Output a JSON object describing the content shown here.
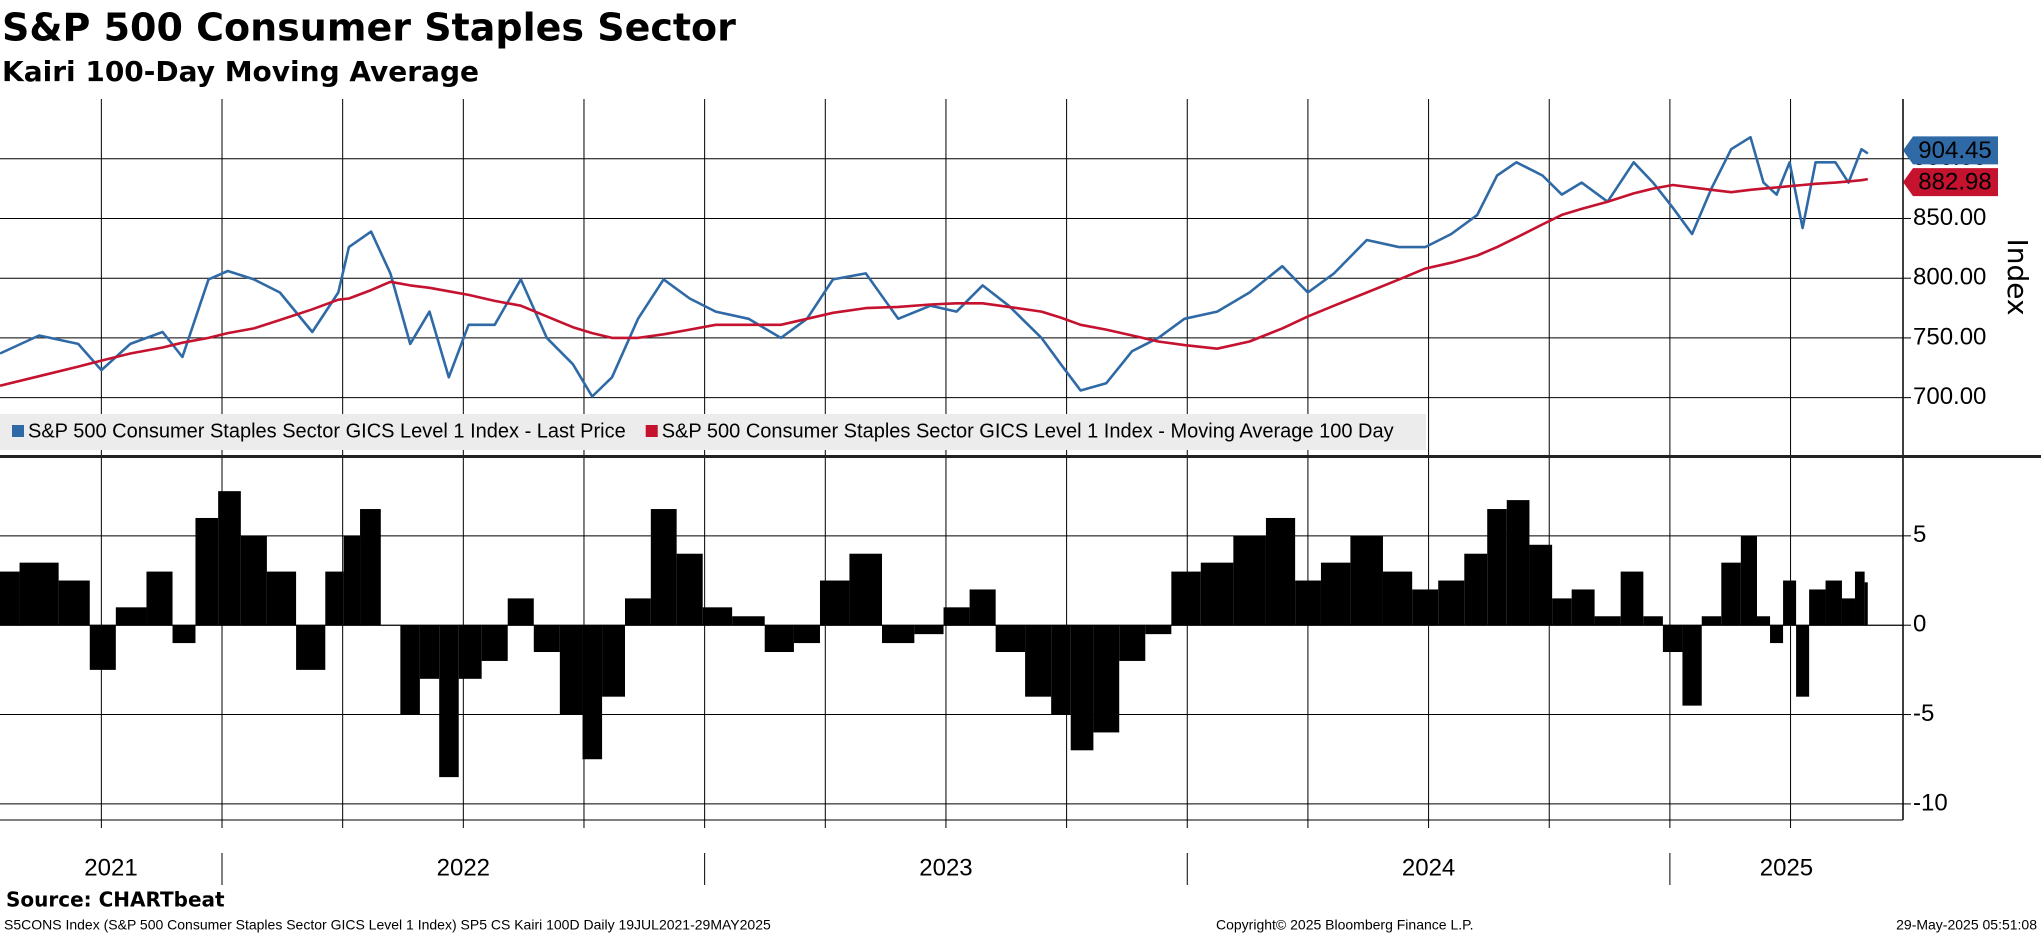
{
  "title": "S&P 500 Consumer Staples Sector",
  "subtitle": "Kairi 100-Day Moving Average",
  "source": "Source: CHARTbeat",
  "footer": {
    "left": "S5CONS Index (S&P 500 Consumer Staples Sector GICS Level 1 Index) SP5 CS Kairi 100D  Daily 19JUL2021-29MAY2025",
    "center": "Copyright© 2025 Bloomberg Finance L.P.",
    "right": "29-May-2025 05:51:08"
  },
  "chart_data": [
    {
      "type": "line",
      "y_label": "Index",
      "x": [
        2021.54,
        2021.621,
        2021.702,
        2021.75,
        2021.81,
        2021.877,
        2021.918,
        2021.972,
        2022.012,
        2022.066,
        2022.12,
        2022.187,
        2022.241,
        2022.263,
        2022.309,
        2022.349,
        2022.39,
        2022.43,
        2022.47,
        2022.511,
        2022.565,
        2022.619,
        2022.673,
        2022.727,
        2022.767,
        2022.808,
        2022.862,
        2022.915,
        2022.969,
        2023.023,
        2023.091,
        2023.158,
        2023.212,
        2023.266,
        2023.334,
        2023.401,
        2023.468,
        2023.522,
        2023.576,
        2023.63,
        2023.698,
        2023.738,
        2023.779,
        2023.832,
        2023.886,
        2023.94,
        2023.994,
        2024.062,
        2024.129,
        2024.197,
        2024.25,
        2024.304,
        2024.372,
        2024.439,
        2024.493,
        2024.547,
        2024.601,
        2024.642,
        2024.682,
        2024.736,
        2024.776,
        2024.817,
        2024.871,
        2024.925,
        2024.965,
        2025.006,
        2025.046,
        2025.086,
        2025.127,
        2025.167,
        2025.194,
        2025.221,
        2025.248,
        2025.275,
        2025.302,
        2025.343,
        2025.37,
        2025.397,
        2025.41
      ],
      "xlim": [
        2021.54,
        2025.483
      ],
      "xticks": [
        2021,
        2022,
        2023,
        2024,
        2025
      ],
      "ylim": [
        652,
        950
      ],
      "yticks": [
        {
          "value": 700,
          "label": "700.00"
        },
        {
          "value": 750,
          "label": "750.00"
        },
        {
          "value": 800,
          "label": "800.00"
        },
        {
          "value": 850,
          "label": "850.00"
        },
        {
          "value": 900,
          "label": "900.00"
        }
      ],
      "grid": true,
      "series": [
        {
          "name": "S&P 500 Consumer Staples Sector GICS Level 1 Index - Last Price",
          "color": "#2f6aa6",
          "values": [
            737,
            752,
            745,
            723,
            745,
            755,
            734,
            799,
            806,
            799,
            788,
            755,
            788,
            826,
            839,
            804,
            745,
            772,
            717,
            761,
            761,
            799,
            750,
            728,
            701,
            717,
            766,
            799,
            783,
            772,
            766,
            750,
            766,
            799,
            804,
            766,
            777,
            772,
            794,
            777,
            750,
            728,
            706,
            712,
            739,
            750,
            766,
            772,
            788,
            810,
            788,
            804,
            832,
            826,
            826,
            837,
            853,
            886,
            897,
            886,
            870,
            880,
            864,
            897,
            880,
            859,
            837,
            875,
            908,
            918,
            880,
            870,
            897,
            842,
            897,
            897,
            880,
            908,
            904.45
          ]
        },
        {
          "name": "S&P 500 Consumer Staples Sector GICS Level 1 Index - Moving Average 100 Day",
          "color": "#c4122f",
          "values": [
            710,
            718,
            726,
            731,
            737,
            742,
            746,
            750,
            754,
            758,
            765,
            774,
            782,
            783,
            790,
            797,
            794,
            792,
            789,
            786,
            781,
            777,
            768,
            759,
            754,
            750,
            750,
            753,
            757,
            761,
            761,
            761,
            766,
            771,
            775,
            776,
            778,
            779,
            779,
            776,
            772,
            767,
            761,
            757,
            752,
            747,
            744,
            741,
            747,
            758,
            768,
            777,
            788,
            799,
            808,
            813,
            819,
            826,
            834,
            845,
            853,
            858,
            864,
            871,
            875,
            878,
            876,
            874,
            872,
            874,
            875,
            876,
            877,
            878,
            879,
            880,
            881,
            882,
            882.98
          ]
        }
      ]
    },
    {
      "type": "bar",
      "color": "#000000",
      "values": [
        3,
        3.5,
        2.5,
        -2.5,
        1,
        3,
        -1,
        6,
        7.5,
        5,
        3,
        -2.5,
        3,
        5,
        6.5,
        0,
        -5,
        -3,
        -8.5,
        -3,
        -2,
        1.5,
        -1.5,
        -5,
        -7.5,
        -4,
        1.5,
        6.5,
        4,
        1,
        0.5,
        -1.5,
        -1,
        2.5,
        4,
        -1,
        -0.5,
        1,
        2,
        -1.5,
        -4,
        -5,
        -7,
        -6,
        -2,
        -0.5,
        3,
        3.5,
        5,
        6,
        2.5,
        3.5,
        5,
        3,
        2,
        2.5,
        4,
        6.5,
        7,
        4.5,
        1.5,
        2,
        0.5,
        3,
        0.5,
        -1.5,
        -4.5,
        0.5,
        3.5,
        5,
        0.5,
        -1,
        2.5,
        -4,
        2,
        2.5,
        1.5,
        3,
        2.4
      ],
      "ylim": [
        -10.9,
        9.3
      ],
      "yticks": [
        -10,
        -5,
        0,
        5
      ],
      "grid": true
    }
  ]
}
